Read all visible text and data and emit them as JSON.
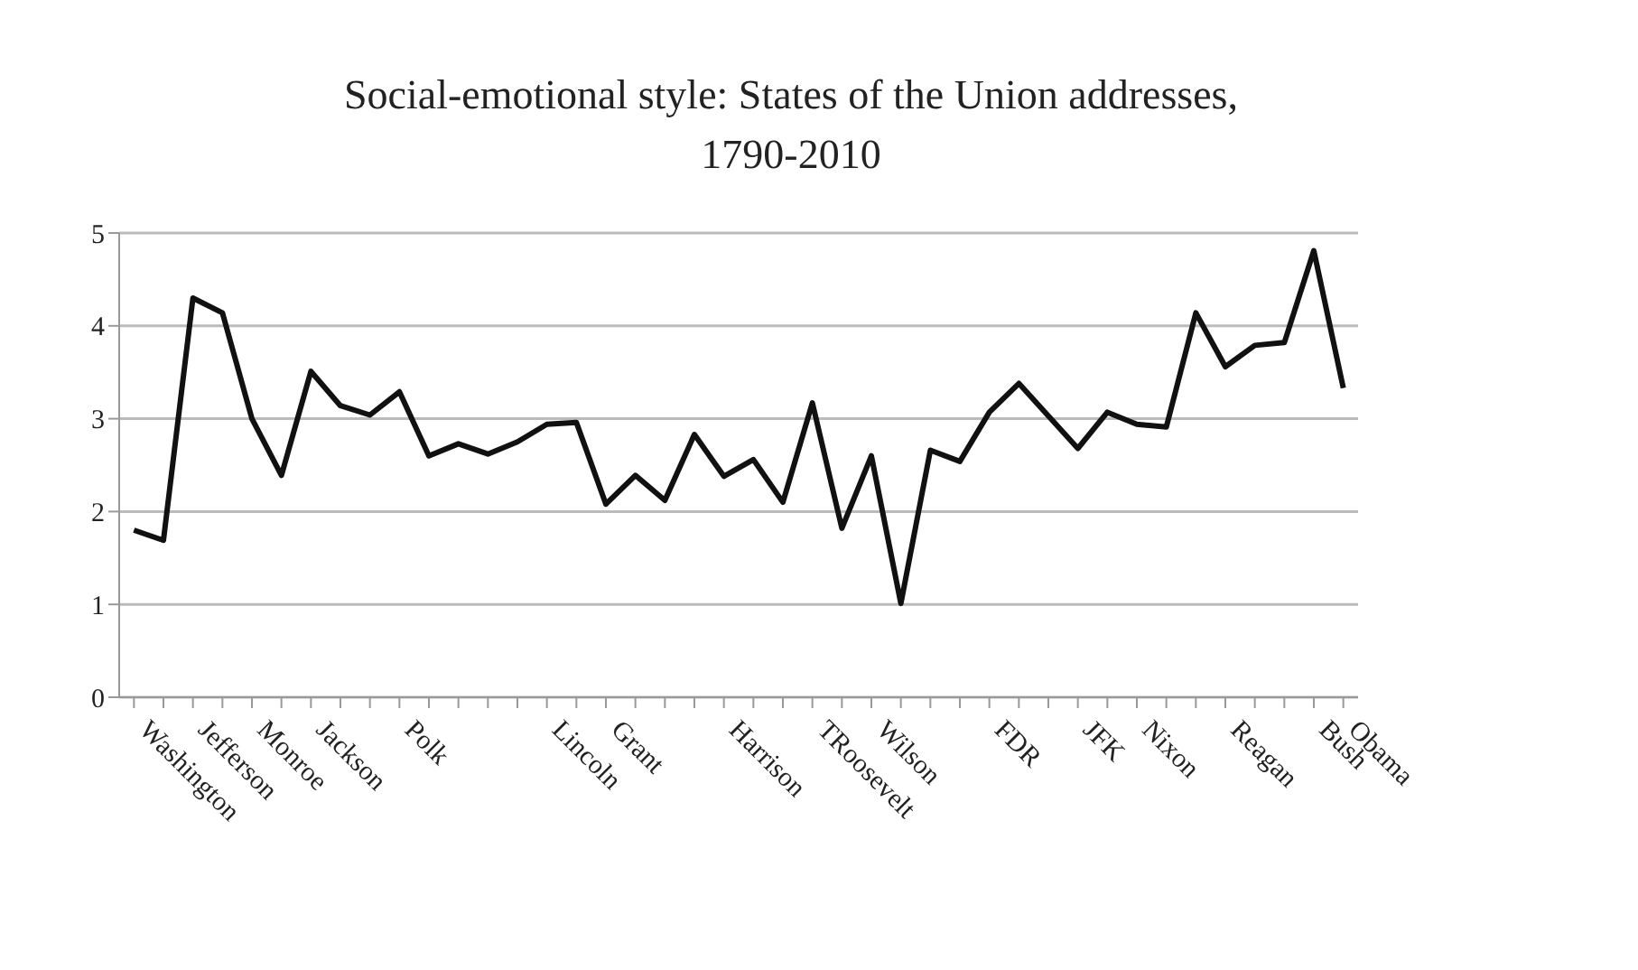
{
  "chart_data": {
    "type": "line",
    "title": "Social-emotional style: States of the Union addresses, 1790-2010",
    "categories": [
      "Washington",
      null,
      "Jefferson",
      null,
      "Monroe",
      null,
      "Jackson",
      null,
      null,
      "Polk",
      null,
      null,
      null,
      null,
      "Lincoln",
      null,
      "Grant",
      null,
      null,
      null,
      "Harrison",
      null,
      null,
      "TRoosevelt",
      null,
      "Wilson",
      null,
      null,
      null,
      "FDR",
      null,
      null,
      "JFK",
      null,
      "Nixon",
      null,
      null,
      "Reagan",
      null,
      null,
      "Bush",
      "Obama"
    ],
    "series": [
      {
        "color": "#111111",
        "values": [
          1.8,
          1.69,
          4.3,
          4.14,
          3.0,
          2.39,
          3.51,
          3.14,
          3.04,
          3.29,
          2.6,
          2.73,
          2.62,
          2.75,
          2.94,
          2.96,
          2.08,
          2.39,
          2.12,
          2.83,
          2.38,
          2.56,
          2.1,
          3.17,
          1.82,
          2.6,
          1.01,
          2.66,
          2.54,
          3.07,
          3.38,
          3.03,
          2.68,
          3.07,
          2.94,
          2.91,
          4.14,
          3.56,
          3.79,
          3.82,
          4.81,
          3.33
        ]
      }
    ],
    "ylim": [
      0,
      5
    ],
    "yticks": [
      0,
      1,
      2,
      3,
      4,
      5
    ],
    "grid": "y",
    "legend": false,
    "marker": "none",
    "line_style": "solid"
  }
}
